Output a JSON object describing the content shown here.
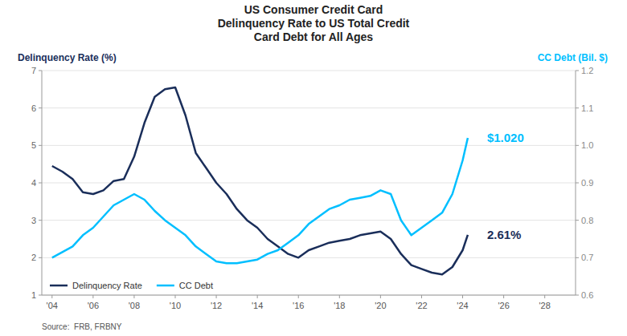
{
  "chart_data": {
    "type": "line",
    "title": "US Consumer Credit Card\nDelinquency Rate to US Total Credit\nCard Debt for All Ages",
    "ylabel": "Delinquency Rate (%)",
    "y2label": "CC Debt (Bil. $)",
    "source": "Source:  FRB, FRBNY",
    "x": [
      2004,
      2004.5,
      2005,
      2005.5,
      2006,
      2006.5,
      2007,
      2007.5,
      2008,
      2008.5,
      2009,
      2009.5,
      2010,
      2010.5,
      2011,
      2011.5,
      2012,
      2012.5,
      2013,
      2013.5,
      2014,
      2014.5,
      2015,
      2015.5,
      2016,
      2016.5,
      2017,
      2017.5,
      2018,
      2018.5,
      2019,
      2019.5,
      2020,
      2020.5,
      2021,
      2021.5,
      2022,
      2022.5,
      2023,
      2023.5,
      2024,
      2024.25
    ],
    "series": [
      {
        "name": "Delinquency Rate",
        "color": "#1a2e5a",
        "values": [
          4.45,
          4.3,
          4.1,
          3.75,
          3.7,
          3.8,
          4.05,
          4.1,
          4.7,
          5.6,
          6.3,
          6.5,
          6.55,
          5.8,
          4.8,
          4.4,
          4.0,
          3.7,
          3.3,
          3.0,
          2.8,
          2.5,
          2.3,
          2.1,
          2.0,
          2.2,
          2.3,
          2.4,
          2.45,
          2.5,
          2.6,
          2.65,
          2.7,
          2.5,
          2.1,
          1.8,
          1.7,
          1.6,
          1.55,
          1.75,
          2.2,
          2.61
        ]
      },
      {
        "name": "CC Debt",
        "color": "#00bfff",
        "axis": "y2",
        "values": [
          0.7,
          0.715,
          0.73,
          0.76,
          0.78,
          0.81,
          0.84,
          0.855,
          0.87,
          0.855,
          0.825,
          0.8,
          0.78,
          0.76,
          0.73,
          0.71,
          0.69,
          0.685,
          0.685,
          0.69,
          0.695,
          0.71,
          0.72,
          0.74,
          0.76,
          0.79,
          0.81,
          0.83,
          0.84,
          0.855,
          0.86,
          0.865,
          0.88,
          0.87,
          0.8,
          0.76,
          0.78,
          0.8,
          0.82,
          0.87,
          0.96,
          1.02
        ]
      }
    ],
    "annotations": [
      {
        "text": "2.61%",
        "x": 2024.25,
        "y": 2.61
      },
      {
        "text": "$1.020",
        "x": 2024.25,
        "y": 1.02,
        "axis": "y2"
      }
    ],
    "xlim": [
      2003.5,
      2029.5
    ],
    "xticks": [
      {
        "value": 2004,
        "label": "'04"
      },
      {
        "value": 2006,
        "label": "'06"
      },
      {
        "value": 2008,
        "label": "'08"
      },
      {
        "value": 2010,
        "label": "'10"
      },
      {
        "value": 2012,
        "label": "'12"
      },
      {
        "value": 2014,
        "label": "'14"
      },
      {
        "value": 2016,
        "label": "'16"
      },
      {
        "value": 2018,
        "label": "'18"
      },
      {
        "value": 2020,
        "label": "'20"
      },
      {
        "value": 2022,
        "label": "'22"
      },
      {
        "value": 2024,
        "label": "'24"
      },
      {
        "value": 2026,
        "label": "'26"
      },
      {
        "value": 2028,
        "label": "'28"
      }
    ],
    "ylim": [
      1,
      7
    ],
    "yticks": [
      1,
      2,
      3,
      4,
      5,
      6,
      7
    ],
    "y2lim": [
      0.6,
      1.2
    ],
    "y2ticks": [
      0.6,
      0.7,
      0.8,
      0.9,
      {
        "value": 1.0,
        "label": "1.0"
      },
      1.1,
      1.2
    ],
    "grid": true,
    "legend": "lower left"
  }
}
